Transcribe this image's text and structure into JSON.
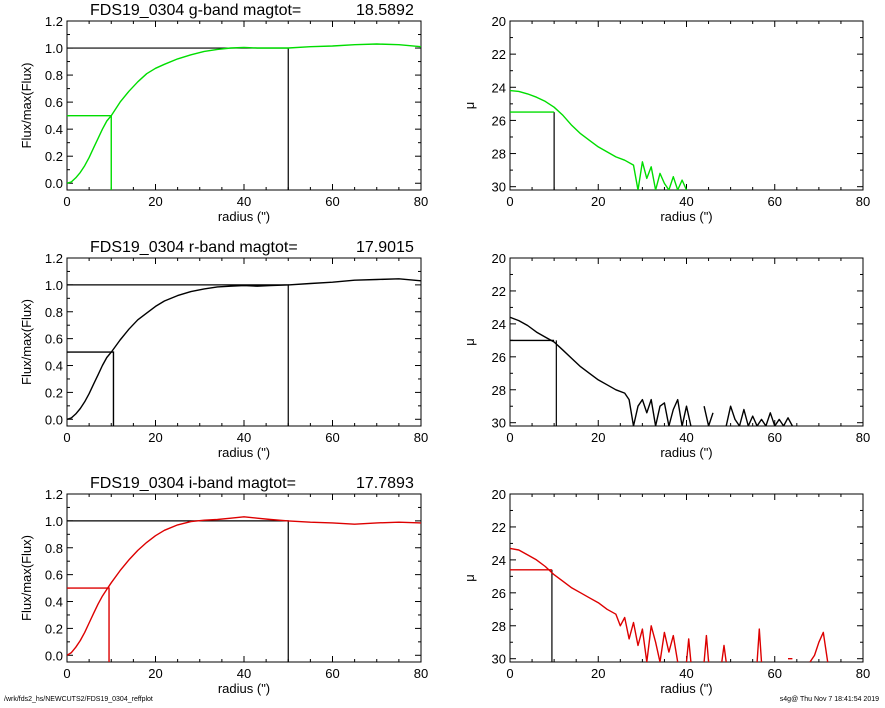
{
  "footer": {
    "path": "/wrk/fds2_hs/NEWCUTS2/FDS19_0304_reffplot",
    "stamp": "s4g@  Thu Nov  7 18:41:54 2019"
  },
  "chart_data": [
    {
      "type": "line",
      "panel": "curve-of-growth",
      "band": "g",
      "title_left": "FDS19_0304 g-band  magtot=",
      "title_value": "18.5892",
      "xlabel": "radius (\")",
      "ylabel": "Flux/max(Flux)",
      "xlim": [
        0,
        80
      ],
      "ylim": [
        -0.05,
        1.2
      ],
      "xticks": [
        0,
        20,
        40,
        60,
        80
      ],
      "xtick_labels": [
        "0",
        "20",
        "40",
        "60",
        "80"
      ],
      "yticks": [
        0.0,
        0.2,
        0.4,
        0.6,
        0.8,
        1.0,
        1.2
      ],
      "ytick_labels": [
        "0.0",
        "0.2",
        "0.4",
        "0.6",
        "0.8",
        "1.0",
        "1.2"
      ],
      "color": "#00dd00",
      "series": [
        {
          "x": [
            0,
            1,
            2,
            3,
            4,
            5,
            6,
            7,
            8,
            9,
            10,
            12,
            14,
            16,
            18,
            20,
            22,
            25,
            28,
            31,
            34,
            37,
            40,
            43,
            46,
            50,
            55,
            60,
            65,
            70,
            75,
            80
          ],
          "values": [
            0,
            0.01,
            0.04,
            0.08,
            0.13,
            0.19,
            0.26,
            0.33,
            0.4,
            0.46,
            0.5,
            0.6,
            0.68,
            0.75,
            0.81,
            0.85,
            0.88,
            0.92,
            0.95,
            0.975,
            0.99,
            1.0,
            1.005,
            1.0,
            1.0,
            1.0,
            1.01,
            1.015,
            1.025,
            1.03,
            1.025,
            1.01
          ]
        }
      ],
      "half_light": {
        "radius": 10.0,
        "flux": 0.5,
        "color": "#00dd00"
      },
      "total_marker": {
        "radius": 50,
        "flux": 1.0,
        "color": "#000000"
      }
    },
    {
      "type": "line",
      "panel": "surface-brightness",
      "band": "g",
      "xlabel": "radius (\")",
      "ylabel": "μ",
      "xlim": [
        0,
        80
      ],
      "ylim": [
        30.2,
        20
      ],
      "xticks": [
        0,
        20,
        40,
        60,
        80
      ],
      "xtick_labels": [
        "0",
        "20",
        "40",
        "60",
        "80"
      ],
      "yticks": [
        20,
        22,
        24,
        26,
        28,
        30
      ],
      "ytick_labels": [
        "20",
        "22",
        "24",
        "26",
        "28",
        "30"
      ],
      "color": "#00dd00",
      "series": [
        {
          "x": [
            0,
            2,
            4,
            6,
            8,
            10,
            12,
            14,
            16,
            18,
            20,
            22,
            24,
            26,
            28,
            29,
            30,
            31,
            32,
            33,
            34,
            35,
            36,
            37,
            38,
            39,
            40
          ],
          "values": [
            24.2,
            24.25,
            24.4,
            24.6,
            24.85,
            25.2,
            25.7,
            26.3,
            26.8,
            27.2,
            27.6,
            27.9,
            28.2,
            28.4,
            28.7,
            30.2,
            28.5,
            29.5,
            28.8,
            30.2,
            29.2,
            29.8,
            30.2,
            29.4,
            30.2,
            29.6,
            30.2
          ]
        },
        {
          "x": [
            0,
            10
          ],
          "values": [
            25.5,
            25.5
          ]
        }
      ],
      "half_light": {
        "radius": 10.0,
        "mu": 25.5,
        "color": "#000000"
      }
    },
    {
      "type": "line",
      "panel": "curve-of-growth",
      "band": "r",
      "title_left": "FDS19_0304 r-band  magtot=",
      "title_value": "17.9015",
      "xlabel": "radius (\")",
      "ylabel": "Flux/max(Flux)",
      "xlim": [
        0,
        80
      ],
      "ylim": [
        -0.05,
        1.2
      ],
      "xticks": [
        0,
        20,
        40,
        60,
        80
      ],
      "xtick_labels": [
        "0",
        "20",
        "40",
        "60",
        "80"
      ],
      "yticks": [
        0.0,
        0.2,
        0.4,
        0.6,
        0.8,
        1.0,
        1.2
      ],
      "ytick_labels": [
        "0.0",
        "0.2",
        "0.4",
        "0.6",
        "0.8",
        "1.0",
        "1.2"
      ],
      "color": "#000000",
      "series": [
        {
          "x": [
            0,
            1,
            2,
            3,
            4,
            5,
            6,
            7,
            8,
            9,
            10,
            12,
            14,
            16,
            18,
            20,
            22,
            25,
            28,
            31,
            34,
            37,
            40,
            43,
            46,
            50,
            55,
            60,
            65,
            70,
            75,
            80
          ],
          "values": [
            0,
            0.01,
            0.04,
            0.08,
            0.13,
            0.19,
            0.26,
            0.33,
            0.4,
            0.46,
            0.5,
            0.59,
            0.67,
            0.74,
            0.79,
            0.84,
            0.88,
            0.92,
            0.95,
            0.97,
            0.985,
            0.99,
            0.995,
            0.99,
            0.995,
            1.0,
            1.01,
            1.02,
            1.035,
            1.04,
            1.045,
            1.03
          ]
        }
      ],
      "half_light": {
        "radius": 10.5,
        "flux": 0.5,
        "color": "#000000"
      },
      "total_marker": {
        "radius": 50,
        "flux": 1.0,
        "color": "#000000"
      }
    },
    {
      "type": "line",
      "panel": "surface-brightness",
      "band": "r",
      "xlabel": "radius (\")",
      "ylabel": "μ",
      "xlim": [
        0,
        80
      ],
      "ylim": [
        30.2,
        20
      ],
      "xticks": [
        0,
        20,
        40,
        60,
        80
      ],
      "xtick_labels": [
        "0",
        "20",
        "40",
        "60",
        "80"
      ],
      "yticks": [
        20,
        22,
        24,
        26,
        28,
        30
      ],
      "ytick_labels": [
        "20",
        "22",
        "24",
        "26",
        "28",
        "30"
      ],
      "color": "#000000",
      "series": [
        {
          "x": [
            0,
            2,
            4,
            6,
            8,
            10,
            12,
            14,
            16,
            18,
            20,
            22,
            24,
            26,
            27,
            28,
            29,
            30,
            31,
            32,
            33,
            34,
            35,
            36,
            37,
            38,
            39,
            40,
            41
          ],
          "values": [
            23.6,
            23.8,
            24.1,
            24.5,
            24.8,
            25.1,
            25.6,
            26.1,
            26.6,
            27.0,
            27.4,
            27.7,
            28.0,
            28.2,
            28.6,
            30.2,
            29.0,
            28.6,
            29.4,
            28.6,
            30.2,
            29.0,
            28.8,
            30.2,
            29.2,
            28.6,
            30.2,
            29.0,
            30.2
          ]
        },
        {
          "x": [
            44,
            45,
            46
          ],
          "values": [
            29.0,
            30.2,
            29.4
          ]
        },
        {
          "x": [
            49,
            50,
            51,
            52,
            53,
            54,
            55,
            56,
            57,
            58,
            59,
            60,
            61,
            62,
            63,
            64
          ],
          "values": [
            30.2,
            29.0,
            29.8,
            30.2,
            29.2,
            30.2,
            29.6,
            30.2,
            29.8,
            30.2,
            29.4,
            30.2,
            29.8,
            30.2,
            29.7,
            30.2
          ]
        },
        {
          "x": [
            0,
            10
          ],
          "values": [
            25.0,
            25.0
          ]
        }
      ],
      "half_light": {
        "radius": 10.5,
        "mu": 25.0,
        "color": "#000000"
      }
    },
    {
      "type": "line",
      "panel": "curve-of-growth",
      "band": "i",
      "title_left": "FDS19_0304 i-band  magtot=",
      "title_value": "17.7893",
      "xlabel": "radius (\")",
      "ylabel": "Flux/max(Flux)",
      "xlim": [
        0,
        80
      ],
      "ylim": [
        -0.05,
        1.2
      ],
      "xticks": [
        0,
        20,
        40,
        60,
        80
      ],
      "xtick_labels": [
        "0",
        "20",
        "40",
        "60",
        "80"
      ],
      "yticks": [
        0.0,
        0.2,
        0.4,
        0.6,
        0.8,
        1.0,
        1.2
      ],
      "ytick_labels": [
        "0.0",
        "0.2",
        "0.4",
        "0.6",
        "0.8",
        "1.0",
        "1.2"
      ],
      "color": "#dd0000",
      "series": [
        {
          "x": [
            0,
            1,
            2,
            3,
            4,
            5,
            6,
            7,
            8,
            9,
            10,
            12,
            14,
            16,
            18,
            20,
            22,
            25,
            28,
            31,
            34,
            37,
            40,
            43,
            46,
            50,
            55,
            60,
            65,
            70,
            75,
            80
          ],
          "values": [
            0,
            0.02,
            0.06,
            0.11,
            0.17,
            0.24,
            0.31,
            0.38,
            0.44,
            0.49,
            0.54,
            0.63,
            0.71,
            0.78,
            0.84,
            0.89,
            0.93,
            0.97,
            0.995,
            1.005,
            1.01,
            1.02,
            1.03,
            1.02,
            1.01,
            1.0,
            0.99,
            0.985,
            0.975,
            0.985,
            0.99,
            0.985
          ]
        }
      ],
      "half_light": {
        "radius": 9.5,
        "flux": 0.5,
        "color": "#dd0000"
      },
      "total_marker": {
        "radius": 50,
        "flux": 1.0,
        "color": "#000000"
      }
    },
    {
      "type": "line",
      "panel": "surface-brightness",
      "band": "i",
      "xlabel": "radius (\")",
      "ylabel": "μ",
      "xlim": [
        0,
        80
      ],
      "ylim": [
        30.2,
        20
      ],
      "xticks": [
        0,
        20,
        40,
        60,
        80
      ],
      "xtick_labels": [
        "0",
        "20",
        "40",
        "60",
        "80"
      ],
      "yticks": [
        20,
        22,
        24,
        26,
        28,
        30
      ],
      "ytick_labels": [
        "20",
        "22",
        "24",
        "26",
        "28",
        "30"
      ],
      "color": "#dd0000",
      "series": [
        {
          "x": [
            0,
            2,
            4,
            6,
            8,
            10,
            12,
            14,
            16,
            18,
            20,
            22,
            24,
            25,
            26,
            27,
            28,
            29,
            30,
            31,
            32,
            33,
            34,
            35,
            36,
            37,
            38
          ],
          "values": [
            23.3,
            23.4,
            23.7,
            24.0,
            24.4,
            24.9,
            25.3,
            25.7,
            26.0,
            26.3,
            26.6,
            27.0,
            27.3,
            28.0,
            27.5,
            28.8,
            27.8,
            29.2,
            28.2,
            30.2,
            28.0,
            29.0,
            30.2,
            28.4,
            29.6,
            28.6,
            30.2
          ]
        },
        {
          "x": [
            40,
            40.5,
            41
          ],
          "values": [
            30.2,
            28.8,
            30.2
          ]
        },
        {
          "x": [
            44,
            44.5,
            45
          ],
          "values": [
            30.2,
            28.6,
            30.2
          ]
        },
        {
          "x": [
            48,
            48.5,
            49
          ],
          "values": [
            30.2,
            29.2,
            30.2
          ]
        },
        {
          "x": [
            56,
            56.5,
            57
          ],
          "values": [
            30.2,
            28.2,
            30.2
          ]
        },
        {
          "x": [
            63,
            64
          ],
          "values": [
            30.0,
            30.0
          ]
        },
        {
          "x": [
            68,
            69,
            70,
            71,
            72
          ],
          "values": [
            30.2,
            29.8,
            29.0,
            28.4,
            30.2
          ]
        },
        {
          "x": [
            0,
            9.5
          ],
          "values": [
            24.6,
            24.6
          ]
        }
      ],
      "half_light": {
        "radius": 9.5,
        "mu": 24.6,
        "color": "#000000"
      }
    }
  ]
}
